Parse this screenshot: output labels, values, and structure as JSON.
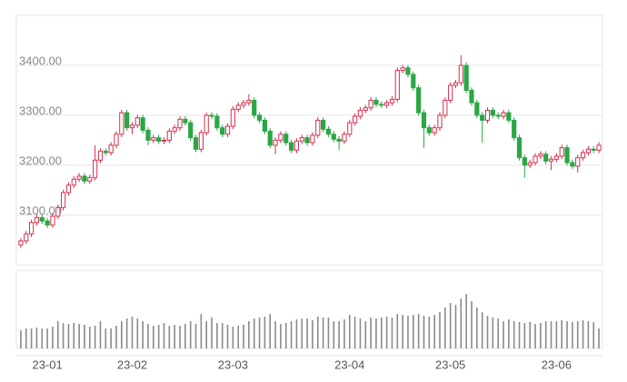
{
  "chart_data": {
    "type": "candlestick",
    "categories": [
      null,
      null,
      null,
      null,
      null,
      "23-01",
      null,
      null,
      null,
      null,
      null,
      null,
      null,
      null,
      null,
      null,
      null,
      null,
      null,
      null,
      null,
      "23-02",
      null,
      null,
      null,
      null,
      null,
      null,
      null,
      null,
      null,
      null,
      null,
      null,
      null,
      null,
      null,
      null,
      null,
      null,
      "23-03",
      null,
      null,
      null,
      null,
      null,
      null,
      null,
      null,
      null,
      null,
      null,
      null,
      null,
      null,
      null,
      null,
      null,
      null,
      null,
      null,
      null,
      "23-04",
      null,
      null,
      null,
      null,
      null,
      null,
      null,
      null,
      null,
      null,
      null,
      null,
      null,
      null,
      null,
      null,
      null,
      null,
      "23-05",
      null,
      null,
      null,
      null,
      null,
      null,
      null,
      null,
      null,
      null,
      null,
      null,
      null,
      null,
      null,
      null,
      null,
      null,
      null,
      "23-06",
      null,
      null,
      null,
      null,
      null,
      null,
      null,
      null
    ],
    "open": [
      3040,
      3048,
      3062,
      3085,
      3095,
      3088,
      3080,
      3098,
      3115,
      3145,
      3160,
      3172,
      3178,
      3168,
      3175,
      3210,
      3228,
      3225,
      3240,
      3262,
      3305,
      3275,
      3280,
      3295,
      3270,
      3250,
      3255,
      3248,
      3250,
      3268,
      3275,
      3292,
      3285,
      3255,
      3232,
      3265,
      3300,
      3298,
      3275,
      3262,
      3278,
      3312,
      3320,
      3325,
      3330,
      3300,
      3290,
      3268,
      3240,
      3250,
      3262,
      3245,
      3230,
      3248,
      3255,
      3245,
      3260,
      3290,
      3272,
      3262,
      3252,
      3248,
      3262,
      3285,
      3298,
      3310,
      3315,
      3330,
      3322,
      3320,
      3325,
      3332,
      3390,
      3395,
      3382,
      3355,
      3305,
      3275,
      3265,
      3275,
      3300,
      3330,
      3360,
      3365,
      3400,
      3350,
      3325,
      3300,
      3290,
      3310,
      3300,
      3298,
      3305,
      3290,
      3255,
      3215,
      3200,
      3205,
      3218,
      3222,
      3208,
      3212,
      3218,
      3235,
      3205,
      3198,
      3215,
      3225,
      3232,
      3230
    ],
    "high": [
      3054,
      3068,
      3091,
      3101,
      3101,
      3094,
      3104,
      3121,
      3151,
      3166,
      3178,
      3184,
      3184,
      3181,
      3240,
      3234,
      3234,
      3246,
      3268,
      3311,
      3311,
      3286,
      3301,
      3301,
      3276,
      3261,
      3261,
      3256,
      3274,
      3281,
      3298,
      3298,
      3291,
      3261,
      3271,
      3306,
      3306,
      3304,
      3281,
      3284,
      3318,
      3326,
      3331,
      3342,
      3336,
      3306,
      3296,
      3274,
      3256,
      3268,
      3268,
      3251,
      3254,
      3261,
      3261,
      3266,
      3296,
      3296,
      3278,
      3268,
      3258,
      3268,
      3291,
      3304,
      3316,
      3321,
      3336,
      3336,
      3328,
      3331,
      3338,
      3396,
      3401,
      3401,
      3388,
      3361,
      3311,
      3281,
      3281,
      3306,
      3336,
      3366,
      3371,
      3420,
      3406,
      3356,
      3331,
      3306,
      3316,
      3316,
      3306,
      3311,
      3311,
      3296,
      3261,
      3221,
      3211,
      3224,
      3228,
      3228,
      3218,
      3224,
      3241,
      3241,
      3211,
      3221,
      3231,
      3238,
      3238,
      3246
    ],
    "low": [
      3034,
      3042,
      3056,
      3079,
      3082,
      3074,
      3074,
      3092,
      3109,
      3139,
      3154,
      3166,
      3162,
      3162,
      3169,
      3204,
      3219,
      3219,
      3234,
      3256,
      3269,
      3262,
      3274,
      3264,
      3240,
      3244,
      3242,
      3242,
      3244,
      3262,
      3269,
      3279,
      3249,
      3226,
      3226,
      3259,
      3292,
      3269,
      3256,
      3256,
      3272,
      3306,
      3314,
      3319,
      3294,
      3284,
      3262,
      3234,
      3222,
      3244,
      3239,
      3224,
      3224,
      3242,
      3239,
      3239,
      3254,
      3266,
      3256,
      3246,
      3230,
      3242,
      3256,
      3279,
      3292,
      3304,
      3309,
      3316,
      3314,
      3314,
      3319,
      3326,
      3384,
      3376,
      3349,
      3299,
      3235,
      3259,
      3259,
      3269,
      3294,
      3324,
      3354,
      3359,
      3344,
      3319,
      3294,
      3245,
      3284,
      3294,
      3292,
      3292,
      3284,
      3249,
      3209,
      3175,
      3194,
      3199,
      3212,
      3202,
      3190,
      3206,
      3212,
      3199,
      3192,
      3185,
      3209,
      3219,
      3224,
      3224
    ],
    "close": [
      3048,
      3062,
      3085,
      3095,
      3088,
      3080,
      3098,
      3115,
      3145,
      3160,
      3172,
      3178,
      3168,
      3175,
      3210,
      3228,
      3225,
      3240,
      3262,
      3305,
      3275,
      3280,
      3295,
      3270,
      3250,
      3255,
      3248,
      3250,
      3268,
      3275,
      3292,
      3285,
      3255,
      3232,
      3265,
      3300,
      3298,
      3275,
      3262,
      3278,
      3312,
      3320,
      3325,
      3330,
      3300,
      3290,
      3268,
      3240,
      3250,
      3262,
      3245,
      3230,
      3248,
      3255,
      3245,
      3260,
      3290,
      3272,
      3262,
      3252,
      3248,
      3262,
      3285,
      3298,
      3310,
      3315,
      3330,
      3322,
      3320,
      3325,
      3332,
      3390,
      3395,
      3382,
      3355,
      3305,
      3275,
      3265,
      3275,
      3300,
      3330,
      3360,
      3365,
      3400,
      3350,
      3325,
      3300,
      3290,
      3310,
      3300,
      3298,
      3305,
      3290,
      3255,
      3215,
      3200,
      3205,
      3218,
      3222,
      3208,
      3212,
      3218,
      3235,
      3205,
      3198,
      3215,
      3225,
      3232,
      3230,
      3240
    ],
    "volume": [
      20,
      22,
      22,
      23,
      22,
      22,
      24,
      30,
      28,
      27,
      28,
      27,
      26,
      24,
      25,
      30,
      22,
      22,
      25,
      30,
      33,
      35,
      33,
      30,
      27,
      25,
      26,
      28,
      25,
      26,
      25,
      27,
      30,
      27,
      38,
      30,
      34,
      28,
      28,
      26,
      24,
      25,
      26,
      30,
      33,
      34,
      35,
      38,
      30,
      27,
      28,
      30,
      32,
      33,
      33,
      31,
      35,
      34,
      34,
      30,
      30,
      32,
      37,
      35,
      33,
      30,
      34,
      33,
      34,
      35,
      34,
      38,
      37,
      36,
      37,
      38,
      36,
      35,
      37,
      40,
      45,
      50,
      48,
      55,
      60,
      52,
      45,
      40,
      36,
      34,
      33,
      30,
      32,
      30,
      29,
      28,
      29,
      27,
      28,
      30,
      30,
      30,
      31,
      30,
      29,
      30,
      31,
      30,
      29,
      22
    ],
    "up_color": "#d6314f",
    "down_color": "#2aa745",
    "volume_color": "#8a8a8a",
    "ylim": [
      3000,
      3500
    ],
    "yticks": [
      {
        "value": 3100,
        "label": "3100.00"
      },
      {
        "value": 3200,
        "label": "3200.00"
      },
      {
        "value": 3300,
        "label": "3300.00"
      },
      {
        "value": 3400,
        "label": "3400.00"
      }
    ],
    "volume_ylim": [
      0,
      86
    ],
    "grid": true
  }
}
